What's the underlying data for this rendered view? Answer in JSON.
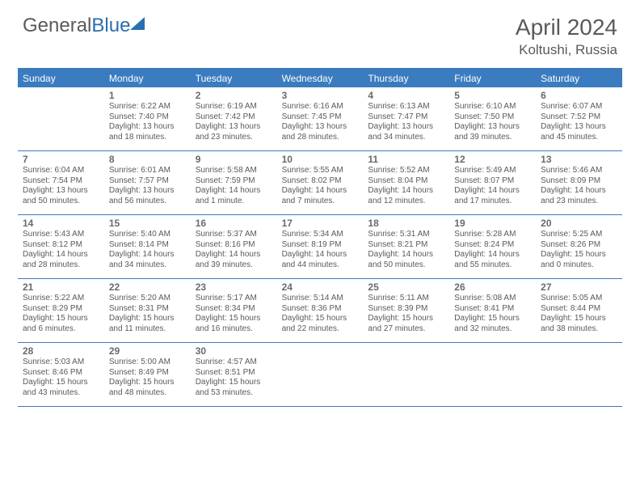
{
  "brand": {
    "part1": "General",
    "part2": "Blue"
  },
  "title": {
    "month": "April 2024",
    "location": "Koltushi, Russia"
  },
  "calendar": {
    "header_color": "#3a7cbf",
    "day_names": [
      "Sunday",
      "Monday",
      "Tuesday",
      "Wednesday",
      "Thursday",
      "Friday",
      "Saturday"
    ],
    "text_color": "#5a5a5a",
    "font_size_daynum": 12,
    "font_size_info": 10,
    "weeks": [
      [
        null,
        {
          "n": "1",
          "sr": "Sunrise: 6:22 AM",
          "ss": "Sunset: 7:40 PM",
          "d1": "Daylight: 13 hours",
          "d2": "and 18 minutes."
        },
        {
          "n": "2",
          "sr": "Sunrise: 6:19 AM",
          "ss": "Sunset: 7:42 PM",
          "d1": "Daylight: 13 hours",
          "d2": "and 23 minutes."
        },
        {
          "n": "3",
          "sr": "Sunrise: 6:16 AM",
          "ss": "Sunset: 7:45 PM",
          "d1": "Daylight: 13 hours",
          "d2": "and 28 minutes."
        },
        {
          "n": "4",
          "sr": "Sunrise: 6:13 AM",
          "ss": "Sunset: 7:47 PM",
          "d1": "Daylight: 13 hours",
          "d2": "and 34 minutes."
        },
        {
          "n": "5",
          "sr": "Sunrise: 6:10 AM",
          "ss": "Sunset: 7:50 PM",
          "d1": "Daylight: 13 hours",
          "d2": "and 39 minutes."
        },
        {
          "n": "6",
          "sr": "Sunrise: 6:07 AM",
          "ss": "Sunset: 7:52 PM",
          "d1": "Daylight: 13 hours",
          "d2": "and 45 minutes."
        }
      ],
      [
        {
          "n": "7",
          "sr": "Sunrise: 6:04 AM",
          "ss": "Sunset: 7:54 PM",
          "d1": "Daylight: 13 hours",
          "d2": "and 50 minutes."
        },
        {
          "n": "8",
          "sr": "Sunrise: 6:01 AM",
          "ss": "Sunset: 7:57 PM",
          "d1": "Daylight: 13 hours",
          "d2": "and 56 minutes."
        },
        {
          "n": "9",
          "sr": "Sunrise: 5:58 AM",
          "ss": "Sunset: 7:59 PM",
          "d1": "Daylight: 14 hours",
          "d2": "and 1 minute."
        },
        {
          "n": "10",
          "sr": "Sunrise: 5:55 AM",
          "ss": "Sunset: 8:02 PM",
          "d1": "Daylight: 14 hours",
          "d2": "and 7 minutes."
        },
        {
          "n": "11",
          "sr": "Sunrise: 5:52 AM",
          "ss": "Sunset: 8:04 PM",
          "d1": "Daylight: 14 hours",
          "d2": "and 12 minutes."
        },
        {
          "n": "12",
          "sr": "Sunrise: 5:49 AM",
          "ss": "Sunset: 8:07 PM",
          "d1": "Daylight: 14 hours",
          "d2": "and 17 minutes."
        },
        {
          "n": "13",
          "sr": "Sunrise: 5:46 AM",
          "ss": "Sunset: 8:09 PM",
          "d1": "Daylight: 14 hours",
          "d2": "and 23 minutes."
        }
      ],
      [
        {
          "n": "14",
          "sr": "Sunrise: 5:43 AM",
          "ss": "Sunset: 8:12 PM",
          "d1": "Daylight: 14 hours",
          "d2": "and 28 minutes."
        },
        {
          "n": "15",
          "sr": "Sunrise: 5:40 AM",
          "ss": "Sunset: 8:14 PM",
          "d1": "Daylight: 14 hours",
          "d2": "and 34 minutes."
        },
        {
          "n": "16",
          "sr": "Sunrise: 5:37 AM",
          "ss": "Sunset: 8:16 PM",
          "d1": "Daylight: 14 hours",
          "d2": "and 39 minutes."
        },
        {
          "n": "17",
          "sr": "Sunrise: 5:34 AM",
          "ss": "Sunset: 8:19 PM",
          "d1": "Daylight: 14 hours",
          "d2": "and 44 minutes."
        },
        {
          "n": "18",
          "sr": "Sunrise: 5:31 AM",
          "ss": "Sunset: 8:21 PM",
          "d1": "Daylight: 14 hours",
          "d2": "and 50 minutes."
        },
        {
          "n": "19",
          "sr": "Sunrise: 5:28 AM",
          "ss": "Sunset: 8:24 PM",
          "d1": "Daylight: 14 hours",
          "d2": "and 55 minutes."
        },
        {
          "n": "20",
          "sr": "Sunrise: 5:25 AM",
          "ss": "Sunset: 8:26 PM",
          "d1": "Daylight: 15 hours",
          "d2": "and 0 minutes."
        }
      ],
      [
        {
          "n": "21",
          "sr": "Sunrise: 5:22 AM",
          "ss": "Sunset: 8:29 PM",
          "d1": "Daylight: 15 hours",
          "d2": "and 6 minutes."
        },
        {
          "n": "22",
          "sr": "Sunrise: 5:20 AM",
          "ss": "Sunset: 8:31 PM",
          "d1": "Daylight: 15 hours",
          "d2": "and 11 minutes."
        },
        {
          "n": "23",
          "sr": "Sunrise: 5:17 AM",
          "ss": "Sunset: 8:34 PM",
          "d1": "Daylight: 15 hours",
          "d2": "and 16 minutes."
        },
        {
          "n": "24",
          "sr": "Sunrise: 5:14 AM",
          "ss": "Sunset: 8:36 PM",
          "d1": "Daylight: 15 hours",
          "d2": "and 22 minutes."
        },
        {
          "n": "25",
          "sr": "Sunrise: 5:11 AM",
          "ss": "Sunset: 8:39 PM",
          "d1": "Daylight: 15 hours",
          "d2": "and 27 minutes."
        },
        {
          "n": "26",
          "sr": "Sunrise: 5:08 AM",
          "ss": "Sunset: 8:41 PM",
          "d1": "Daylight: 15 hours",
          "d2": "and 32 minutes."
        },
        {
          "n": "27",
          "sr": "Sunrise: 5:05 AM",
          "ss": "Sunset: 8:44 PM",
          "d1": "Daylight: 15 hours",
          "d2": "and 38 minutes."
        }
      ],
      [
        {
          "n": "28",
          "sr": "Sunrise: 5:03 AM",
          "ss": "Sunset: 8:46 PM",
          "d1": "Daylight: 15 hours",
          "d2": "and 43 minutes."
        },
        {
          "n": "29",
          "sr": "Sunrise: 5:00 AM",
          "ss": "Sunset: 8:49 PM",
          "d1": "Daylight: 15 hours",
          "d2": "and 48 minutes."
        },
        {
          "n": "30",
          "sr": "Sunrise: 4:57 AM",
          "ss": "Sunset: 8:51 PM",
          "d1": "Daylight: 15 hours",
          "d2": "and 53 minutes."
        },
        null,
        null,
        null,
        null
      ]
    ]
  }
}
